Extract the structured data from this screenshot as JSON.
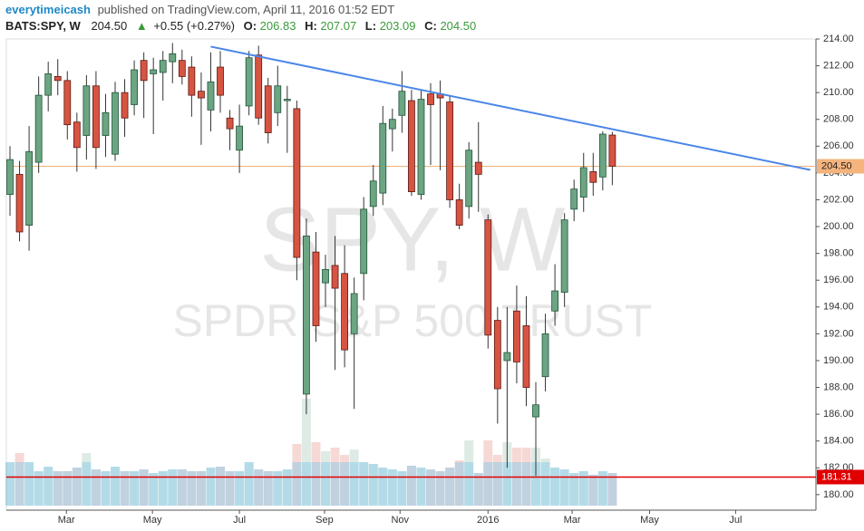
{
  "header": {
    "author": "everytimeicash",
    "published": "published on TradingView.com, April 11, 2016 01:52 EDT",
    "symbol": "BATS:SPY, W",
    "last": "204.50",
    "arrow": "▲",
    "change": "+0.55 (+0.27%)",
    "o_label": "O:",
    "o": "206.83",
    "h_label": "H:",
    "h": "207.07",
    "l_label": "L:",
    "l": "203.09",
    "c_label": "C:",
    "c": "204.50"
  },
  "chart_data": {
    "type": "candlestick",
    "watermark": [
      "SPY, W",
      "SPDR S&P 500 TRUST"
    ],
    "up_color": "#6ba583",
    "down_color": "#d75442",
    "open": [
      202.4,
      203.9,
      200.1,
      204.8,
      209.8,
      211.2,
      210.9,
      207.8,
      206.8,
      210.5,
      206.8,
      205.4,
      210.0,
      209.1,
      212.4,
      211.4,
      211.5,
      212.3,
      212.4,
      211.9,
      210.1,
      208.7,
      211.9,
      208.1,
      205.7,
      209.0,
      212.8,
      210.5,
      208.5,
      209.4,
      208.8,
      187.5,
      198.1,
      195.8,
      197.1,
      196.5,
      192.0,
      196.5,
      201.5,
      202.5,
      207.3,
      208.3,
      209.4,
      202.4,
      209.9,
      209.9,
      209.3,
      202.0,
      201.5,
      204.8,
      200.5,
      193.0,
      190.0,
      193.7,
      192.6,
      185.8,
      188.8,
      193.7,
      195.1,
      201.3,
      202.2,
      204.1,
      203.7,
      206.83
    ],
    "high": [
      206.0,
      204.9,
      207.5,
      211.2,
      212.3,
      212.5,
      211.6,
      208.5,
      211.3,
      211.6,
      209.9,
      210.8,
      211.0,
      212.4,
      213.0,
      212.6,
      213.1,
      213.7,
      213.2,
      212.7,
      211.5,
      213.0,
      213.1,
      208.7,
      209.1,
      213.1,
      213.5,
      211.1,
      212.0,
      210.5,
      209.4,
      200.6,
      199.6,
      197.9,
      199.3,
      198.6,
      196.2,
      202.2,
      204.6,
      209.0,
      208.8,
      211.6,
      210.2,
      210.2,
      210.7,
      210.9,
      209.8,
      203.2,
      206.3,
      207.8,
      200.9,
      194.0,
      194.0,
      195.6,
      194.8,
      188.4,
      193.5,
      197.2,
      201.0,
      203.5,
      205.5,
      205.5,
      207.1,
      207.07
    ],
    "low": [
      200.8,
      198.9,
      198.2,
      204.0,
      208.6,
      209.8,
      206.5,
      204.1,
      205.0,
      204.3,
      205.2,
      204.9,
      206.7,
      208.3,
      208.1,
      206.9,
      209.4,
      210.7,
      210.6,
      208.2,
      206.1,
      207.1,
      208.5,
      205.7,
      204.0,
      208.3,
      207.6,
      206.2,
      207.5,
      205.5,
      196.0,
      186.0,
      191.4,
      194.0,
      189.3,
      189.5,
      186.4,
      194.5,
      200.8,
      201.6,
      205.6,
      207.0,
      202.3,
      202.0,
      204.6,
      204.2,
      201.4,
      199.8,
      200.6,
      201.1,
      190.9,
      185.3,
      182.0,
      188.3,
      186.6,
      181.4,
      187.7,
      192.6,
      194.0,
      200.4,
      201.1,
      202.3,
      202.7,
      203.09
    ],
    "close": [
      205.0,
      199.6,
      205.6,
      209.8,
      211.4,
      210.9,
      207.6,
      205.9,
      210.5,
      205.9,
      208.5,
      210.0,
      208.1,
      211.7,
      210.9,
      211.7,
      212.4,
      212.9,
      211.2,
      209.8,
      209.6,
      210.8,
      209.8,
      207.3,
      207.5,
      212.6,
      208.1,
      207.0,
      210.5,
      209.5,
      197.7,
      199.3,
      192.6,
      196.8,
      195.4,
      190.8,
      195.0,
      201.3,
      203.4,
      207.7,
      208.0,
      210.1,
      202.6,
      209.5,
      209.1,
      209.6,
      202.0,
      200.1,
      205.7,
      203.9,
      191.9,
      187.9,
      190.6,
      189.9,
      188.0,
      186.7,
      192.0,
      195.2,
      200.5,
      202.8,
      204.4,
      203.3,
      206.9,
      204.5
    ],
    "volume": [
      480,
      580,
      480,
      380,
      430,
      380,
      380,
      420,
      580,
      400,
      380,
      430,
      380,
      380,
      400,
      360,
      380,
      400,
      400,
      380,
      380,
      420,
      430,
      380,
      380,
      480,
      400,
      380,
      380,
      400,
      680,
      1180,
      700,
      600,
      640,
      560,
      620,
      480,
      460,
      420,
      400,
      380,
      440,
      420,
      400,
      380,
      420,
      500,
      720,
      360,
      720,
      560,
      700,
      640,
      640,
      640,
      520,
      420,
      400,
      360,
      380,
      340,
      380,
      360
    ],
    "volume_lim": [
      0,
      1600
    ],
    "xlim": [
      -0.38,
      84.3
    ],
    "xticks": [
      {
        "value": 5.9,
        "label": "Mar"
      },
      {
        "value": 14.9,
        "label": "May"
      },
      {
        "value": 24.0,
        "label": "Jul"
      },
      {
        "value": 32.9,
        "label": "Sep"
      },
      {
        "value": 40.8,
        "label": "Nov"
      },
      {
        "value": 50.0,
        "label": "2016"
      },
      {
        "value": 58.8,
        "label": "Mar"
      },
      {
        "value": 66.9,
        "label": "May"
      },
      {
        "value": 75.9,
        "label": "Jul"
      }
    ],
    "ylim": [
      178.84,
      214.0
    ],
    "yticks": [
      {
        "value": 180,
        "label": "180.00"
      },
      {
        "value": 182,
        "label": "182.00"
      },
      {
        "value": 184,
        "label": "184.00"
      },
      {
        "value": 186,
        "label": "186.00"
      },
      {
        "value": 188,
        "label": "188.00"
      },
      {
        "value": 190,
        "label": "190.00"
      },
      {
        "value": 192,
        "label": "192.00"
      },
      {
        "value": 194,
        "label": "194.00"
      },
      {
        "value": 196,
        "label": "196.00"
      },
      {
        "value": 198,
        "label": "198.00"
      },
      {
        "value": 200,
        "label": "200.00"
      },
      {
        "value": 202,
        "label": "202.00"
      },
      {
        "value": 204,
        "label": "204.00"
      },
      {
        "value": 206,
        "label": "206.00"
      },
      {
        "value": 208,
        "label": "208.00"
      },
      {
        "value": 210,
        "label": "210.00"
      },
      {
        "value": 212,
        "label": "212.00"
      },
      {
        "value": 214,
        "label": "214.00"
      }
    ],
    "price_line": {
      "value": 204.5,
      "label": "204.50",
      "color": "#f0b27a"
    },
    "red_line": {
      "value": 181.31,
      "label": "181.31",
      "color": "#e00000"
    },
    "trendline": {
      "x": [
        21,
        83.7
      ],
      "y": [
        213.43,
        204.23
      ],
      "color": "#4a86e8"
    }
  }
}
